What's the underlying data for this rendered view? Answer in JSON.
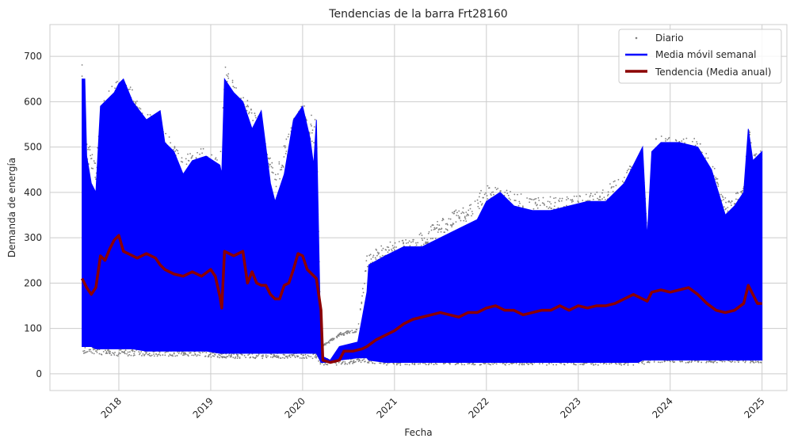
{
  "chart_data": {
    "type": "line",
    "title": "Tendencias de la barra Frt28160",
    "xlabel": "Fecha",
    "ylabel": "Demanda de energía",
    "x_ticks": [
      "2018",
      "2019",
      "2020",
      "2021",
      "2022",
      "2023",
      "2024",
      "2025"
    ],
    "y_ticks": [
      0,
      100,
      200,
      300,
      400,
      500,
      600,
      700
    ],
    "xlim": [
      2017.25,
      2025.27
    ],
    "ylim": [
      -37,
      770
    ],
    "grid": true,
    "legend_position": "top-right",
    "colors": {
      "daily": "#808080",
      "weekly": "#0000ff",
      "trend": "#8b0000"
    },
    "series": [
      {
        "name": "Diario",
        "style": "scatter",
        "envelope": [
          [
            2017.6,
            50,
            700
          ],
          [
            2017.65,
            50,
            520
          ],
          [
            2017.75,
            50,
            480
          ],
          [
            2017.85,
            45,
            620
          ],
          [
            2018.0,
            45,
            650
          ],
          [
            2018.1,
            45,
            640
          ],
          [
            2018.3,
            45,
            580
          ],
          [
            2018.5,
            45,
            540
          ],
          [
            2018.7,
            45,
            480
          ],
          [
            2018.9,
            45,
            500
          ],
          [
            2019.1,
            40,
            470
          ],
          [
            2019.15,
            40,
            680
          ],
          [
            2019.3,
            40,
            630
          ],
          [
            2019.5,
            40,
            580
          ],
          [
            2019.7,
            40,
            450
          ],
          [
            2019.9,
            40,
            560
          ],
          [
            2020.0,
            40,
            600
          ],
          [
            2020.15,
            40,
            560
          ],
          [
            2020.2,
            25,
            60
          ],
          [
            2020.4,
            25,
            90
          ],
          [
            2020.6,
            30,
            100
          ],
          [
            2020.7,
            30,
            260
          ],
          [
            2020.9,
            25,
            290
          ],
          [
            2021.2,
            25,
            300
          ],
          [
            2021.5,
            25,
            340
          ],
          [
            2021.8,
            25,
            380
          ],
          [
            2022.0,
            25,
            420
          ],
          [
            2022.3,
            25,
            400
          ],
          [
            2022.6,
            25,
            390
          ],
          [
            2022.9,
            25,
            390
          ],
          [
            2023.2,
            25,
            400
          ],
          [
            2023.5,
            25,
            440
          ],
          [
            2023.7,
            25,
            500
          ],
          [
            2023.75,
            30,
            320
          ],
          [
            2023.85,
            30,
            530
          ],
          [
            2024.0,
            30,
            520
          ],
          [
            2024.3,
            30,
            520
          ],
          [
            2024.5,
            30,
            450
          ],
          [
            2024.65,
            30,
            380
          ],
          [
            2024.8,
            30,
            420
          ],
          [
            2024.85,
            30,
            550
          ],
          [
            2024.95,
            30,
            480
          ],
          [
            2025.0,
            30,
            500
          ]
        ]
      },
      {
        "name": "Media móvil semanal",
        "style": "band",
        "envelope": [
          [
            2017.6,
            60,
            650
          ],
          [
            2017.63,
            60,
            650
          ],
          [
            2017.65,
            60,
            480
          ],
          [
            2017.7,
            60,
            420
          ],
          [
            2017.75,
            55,
            400
          ],
          [
            2017.8,
            55,
            590
          ],
          [
            2017.95,
            55,
            620
          ],
          [
            2018.0,
            55,
            640
          ],
          [
            2018.05,
            55,
            650
          ],
          [
            2018.15,
            55,
            600
          ],
          [
            2018.3,
            50,
            560
          ],
          [
            2018.45,
            50,
            580
          ],
          [
            2018.5,
            50,
            510
          ],
          [
            2018.6,
            50,
            490
          ],
          [
            2018.7,
            50,
            440
          ],
          [
            2018.8,
            50,
            470
          ],
          [
            2018.95,
            50,
            480
          ],
          [
            2019.1,
            45,
            460
          ],
          [
            2019.12,
            45,
            440
          ],
          [
            2019.15,
            45,
            650
          ],
          [
            2019.25,
            45,
            620
          ],
          [
            2019.35,
            45,
            600
          ],
          [
            2019.45,
            45,
            540
          ],
          [
            2019.55,
            45,
            580
          ],
          [
            2019.65,
            45,
            420
          ],
          [
            2019.7,
            45,
            380
          ],
          [
            2019.8,
            45,
            440
          ],
          [
            2019.9,
            45,
            560
          ],
          [
            2020.0,
            45,
            590
          ],
          [
            2020.08,
            45,
            520
          ],
          [
            2020.12,
            45,
            460
          ],
          [
            2020.15,
            45,
            560
          ],
          [
            2020.2,
            25,
            40
          ],
          [
            2020.3,
            25,
            30
          ],
          [
            2020.4,
            30,
            60
          ],
          [
            2020.6,
            35,
            70
          ],
          [
            2020.7,
            35,
            180
          ],
          [
            2020.72,
            30,
            240
          ],
          [
            2020.9,
            25,
            260
          ],
          [
            2021.1,
            25,
            280
          ],
          [
            2021.3,
            25,
            280
          ],
          [
            2021.5,
            25,
            300
          ],
          [
            2021.7,
            25,
            320
          ],
          [
            2021.9,
            25,
            340
          ],
          [
            2022.0,
            25,
            380
          ],
          [
            2022.15,
            25,
            400
          ],
          [
            2022.3,
            25,
            370
          ],
          [
            2022.5,
            25,
            360
          ],
          [
            2022.7,
            25,
            360
          ],
          [
            2022.9,
            25,
            370
          ],
          [
            2023.1,
            25,
            380
          ],
          [
            2023.3,
            25,
            380
          ],
          [
            2023.5,
            25,
            420
          ],
          [
            2023.65,
            25,
            480
          ],
          [
            2023.7,
            30,
            500
          ],
          [
            2023.75,
            30,
            300
          ],
          [
            2023.8,
            30,
            490
          ],
          [
            2023.9,
            30,
            510
          ],
          [
            2024.1,
            30,
            510
          ],
          [
            2024.3,
            30,
            500
          ],
          [
            2024.45,
            30,
            450
          ],
          [
            2024.6,
            30,
            350
          ],
          [
            2024.7,
            30,
            370
          ],
          [
            2024.8,
            30,
            400
          ],
          [
            2024.85,
            30,
            540
          ],
          [
            2024.9,
            30,
            470
          ],
          [
            2025.0,
            30,
            490
          ]
        ]
      },
      {
        "name": "Tendencia (Media anual)",
        "style": "line",
        "points": [
          [
            2017.6,
            210
          ],
          [
            2017.65,
            190
          ],
          [
            2017.7,
            175
          ],
          [
            2017.75,
            190
          ],
          [
            2017.8,
            260
          ],
          [
            2017.85,
            250
          ],
          [
            2017.9,
            275
          ],
          [
            2017.95,
            295
          ],
          [
            2018.0,
            305
          ],
          [
            2018.05,
            270
          ],
          [
            2018.1,
            265
          ],
          [
            2018.2,
            255
          ],
          [
            2018.3,
            265
          ],
          [
            2018.4,
            255
          ],
          [
            2018.45,
            240
          ],
          [
            2018.5,
            230
          ],
          [
            2018.6,
            220
          ],
          [
            2018.7,
            215
          ],
          [
            2018.8,
            225
          ],
          [
            2018.9,
            215
          ],
          [
            2019.0,
            230
          ],
          [
            2019.05,
            215
          ],
          [
            2019.1,
            170
          ],
          [
            2019.12,
            145
          ],
          [
            2019.15,
            270
          ],
          [
            2019.25,
            260
          ],
          [
            2019.35,
            270
          ],
          [
            2019.4,
            200
          ],
          [
            2019.45,
            225
          ],
          [
            2019.5,
            200
          ],
          [
            2019.55,
            195
          ],
          [
            2019.6,
            195
          ],
          [
            2019.65,
            175
          ],
          [
            2019.7,
            165
          ],
          [
            2019.75,
            165
          ],
          [
            2019.8,
            195
          ],
          [
            2019.85,
            200
          ],
          [
            2019.9,
            230
          ],
          [
            2019.95,
            265
          ],
          [
            2020.0,
            260
          ],
          [
            2020.05,
            230
          ],
          [
            2020.1,
            220
          ],
          [
            2020.15,
            210
          ],
          [
            2020.2,
            140
          ],
          [
            2020.22,
            30
          ],
          [
            2020.3,
            25
          ],
          [
            2020.4,
            30
          ],
          [
            2020.45,
            50
          ],
          [
            2020.55,
            50
          ],
          [
            2020.65,
            55
          ],
          [
            2020.7,
            60
          ],
          [
            2020.8,
            75
          ],
          [
            2020.9,
            85
          ],
          [
            2021.0,
            95
          ],
          [
            2021.1,
            110
          ],
          [
            2021.2,
            120
          ],
          [
            2021.3,
            125
          ],
          [
            2021.4,
            130
          ],
          [
            2021.5,
            135
          ],
          [
            2021.6,
            130
          ],
          [
            2021.7,
            125
          ],
          [
            2021.8,
            135
          ],
          [
            2021.9,
            135
          ],
          [
            2022.0,
            145
          ],
          [
            2022.1,
            150
          ],
          [
            2022.2,
            140
          ],
          [
            2022.3,
            140
          ],
          [
            2022.4,
            130
          ],
          [
            2022.5,
            135
          ],
          [
            2022.6,
            140
          ],
          [
            2022.7,
            140
          ],
          [
            2022.8,
            150
          ],
          [
            2022.9,
            140
          ],
          [
            2023.0,
            150
          ],
          [
            2023.1,
            145
          ],
          [
            2023.2,
            150
          ],
          [
            2023.3,
            150
          ],
          [
            2023.4,
            155
          ],
          [
            2023.5,
            165
          ],
          [
            2023.6,
            175
          ],
          [
            2023.7,
            165
          ],
          [
            2023.75,
            160
          ],
          [
            2023.8,
            180
          ],
          [
            2023.9,
            185
          ],
          [
            2024.0,
            180
          ],
          [
            2024.1,
            185
          ],
          [
            2024.2,
            190
          ],
          [
            2024.3,
            175
          ],
          [
            2024.4,
            155
          ],
          [
            2024.5,
            140
          ],
          [
            2024.6,
            135
          ],
          [
            2024.7,
            140
          ],
          [
            2024.8,
            155
          ],
          [
            2024.85,
            195
          ],
          [
            2024.9,
            175
          ],
          [
            2024.95,
            155
          ],
          [
            2025.0,
            155
          ]
        ]
      }
    ]
  }
}
